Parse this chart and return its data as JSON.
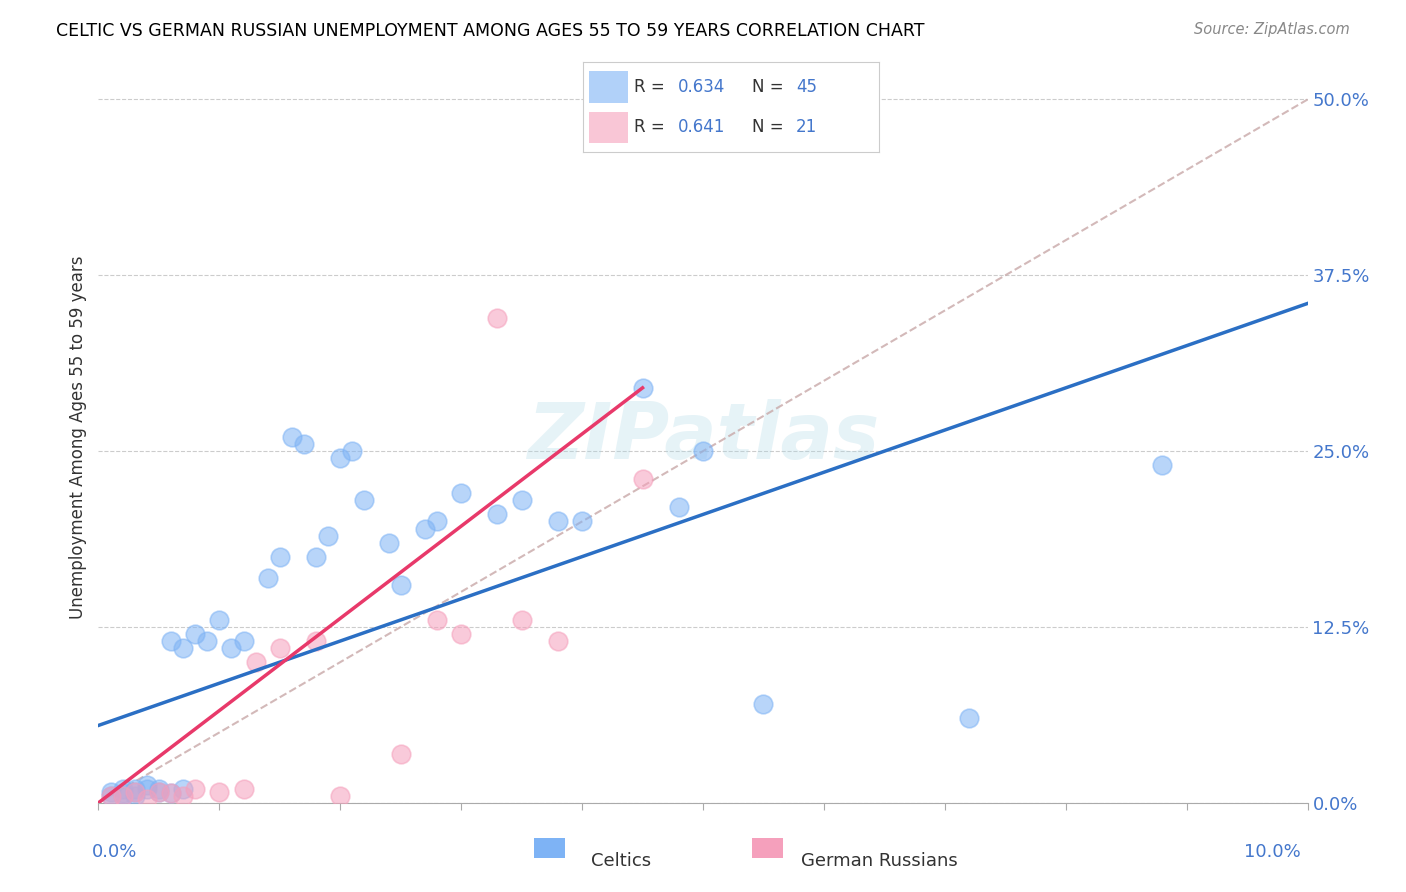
{
  "title": "CELTIC VS GERMAN RUSSIAN UNEMPLOYMENT AMONG AGES 55 TO 59 YEARS CORRELATION CHART",
  "source": "Source: ZipAtlas.com",
  "ylabel": "Unemployment Among Ages 55 to 59 years",
  "ytick_labels": [
    "0.0%",
    "12.5%",
    "25.0%",
    "37.5%",
    "50.0%"
  ],
  "ytick_values": [
    0.0,
    0.125,
    0.25,
    0.375,
    0.5
  ],
  "xmin": 0.0,
  "xmax": 0.1,
  "ymin": 0.0,
  "ymax": 0.52,
  "celtics_R": 0.634,
  "celtics_N": 45,
  "german_russian_R": 0.641,
  "german_russian_N": 21,
  "celtics_color": "#7EB3F5",
  "german_russian_color": "#F5A0BC",
  "trendline_celtic_color": "#2B6FC4",
  "trendline_gr_color": "#E8396A",
  "diagonal_color": "#C8A8A8",
  "legend_label_celtic": "Celtics",
  "legend_label_gr": "German Russians",
  "celtics_x": [
    0.001,
    0.001,
    0.002,
    0.002,
    0.002,
    0.003,
    0.003,
    0.003,
    0.004,
    0.004,
    0.005,
    0.005,
    0.006,
    0.006,
    0.007,
    0.007,
    0.008,
    0.009,
    0.01,
    0.011,
    0.012,
    0.014,
    0.015,
    0.016,
    0.017,
    0.018,
    0.019,
    0.02,
    0.021,
    0.022,
    0.024,
    0.025,
    0.027,
    0.028,
    0.03,
    0.033,
    0.035,
    0.038,
    0.04,
    0.045,
    0.048,
    0.05,
    0.055,
    0.088,
    0.072
  ],
  "celtics_y": [
    0.005,
    0.008,
    0.005,
    0.01,
    0.007,
    0.005,
    0.008,
    0.01,
    0.01,
    0.013,
    0.008,
    0.01,
    0.007,
    0.115,
    0.11,
    0.01,
    0.12,
    0.115,
    0.13,
    0.11,
    0.115,
    0.16,
    0.175,
    0.26,
    0.255,
    0.175,
    0.19,
    0.245,
    0.25,
    0.215,
    0.185,
    0.155,
    0.195,
    0.2,
    0.22,
    0.205,
    0.215,
    0.2,
    0.2,
    0.295,
    0.21,
    0.25,
    0.07,
    0.24,
    0.06
  ],
  "gr_x": [
    0.001,
    0.002,
    0.003,
    0.004,
    0.005,
    0.006,
    0.007,
    0.008,
    0.01,
    0.012,
    0.013,
    0.015,
    0.018,
    0.02,
    0.025,
    0.028,
    0.03,
    0.033,
    0.035,
    0.038,
    0.045
  ],
  "gr_y": [
    0.005,
    0.005,
    0.008,
    0.003,
    0.008,
    0.007,
    0.005,
    0.01,
    0.008,
    0.01,
    0.1,
    0.11,
    0.115,
    0.005,
    0.035,
    0.13,
    0.12,
    0.345,
    0.13,
    0.115,
    0.23
  ],
  "celtic_trend_x0": 0.0,
  "celtic_trend_y0": 0.055,
  "celtic_trend_x1": 0.1,
  "celtic_trend_y1": 0.355,
  "gr_trend_x0": 0.0,
  "gr_trend_y0": 0.0,
  "gr_trend_x1": 0.045,
  "gr_trend_y1": 0.295
}
